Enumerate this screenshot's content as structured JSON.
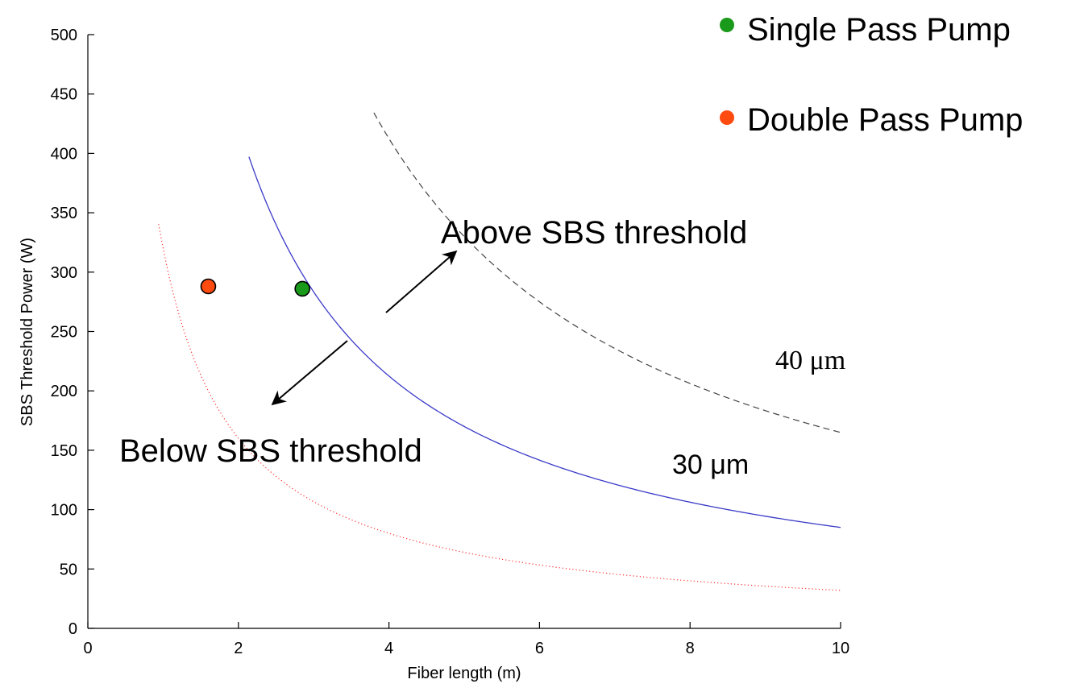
{
  "chart_data": {
    "type": "line",
    "xlabel": "Fiber length (m)",
    "ylabel": "SBS Threshold Power (W)",
    "xlim": [
      0,
      10
    ],
    "ylim": [
      0,
      500
    ],
    "xticks": [
      "0",
      "2",
      "4",
      "6",
      "8",
      "10"
    ],
    "yticks": [
      "0",
      "50",
      "100",
      "150",
      "200",
      "250",
      "300",
      "350",
      "400",
      "450",
      "500"
    ],
    "grid": false,
    "series": [
      {
        "key": "dotted",
        "style": "dotted",
        "color": "#ff3030",
        "k": 320,
        "x_range": [
          0.94,
          10
        ]
      },
      {
        "key": "solid",
        "style": "solid",
        "color": "#3a3ac8",
        "k": 850,
        "x_range": [
          2.14,
          10
        ]
      },
      {
        "key": "dashed",
        "style": "dashed",
        "color": "#444444",
        "k": 1650,
        "x_range": [
          3.8,
          10
        ]
      }
    ],
    "points": [
      {
        "name": "Single Pass Pump",
        "x": 2.85,
        "y": 286,
        "color": "#1a9a1a"
      },
      {
        "name": "Double Pass Pump",
        "x": 1.6,
        "y": 288,
        "color": "#ff4a10"
      }
    ],
    "legend": {
      "position": "top-right",
      "entries": [
        {
          "label": "Single Pass Pump",
          "color": "#1a9a1a"
        },
        {
          "label": "Double Pass Pump",
          "color": "#ff4a10"
        }
      ]
    },
    "annotations": {
      "above": "Above SBS threshold",
      "below": "Below SBS threshold",
      "label_30": "30 μm",
      "label_40": "40 μm"
    }
  }
}
